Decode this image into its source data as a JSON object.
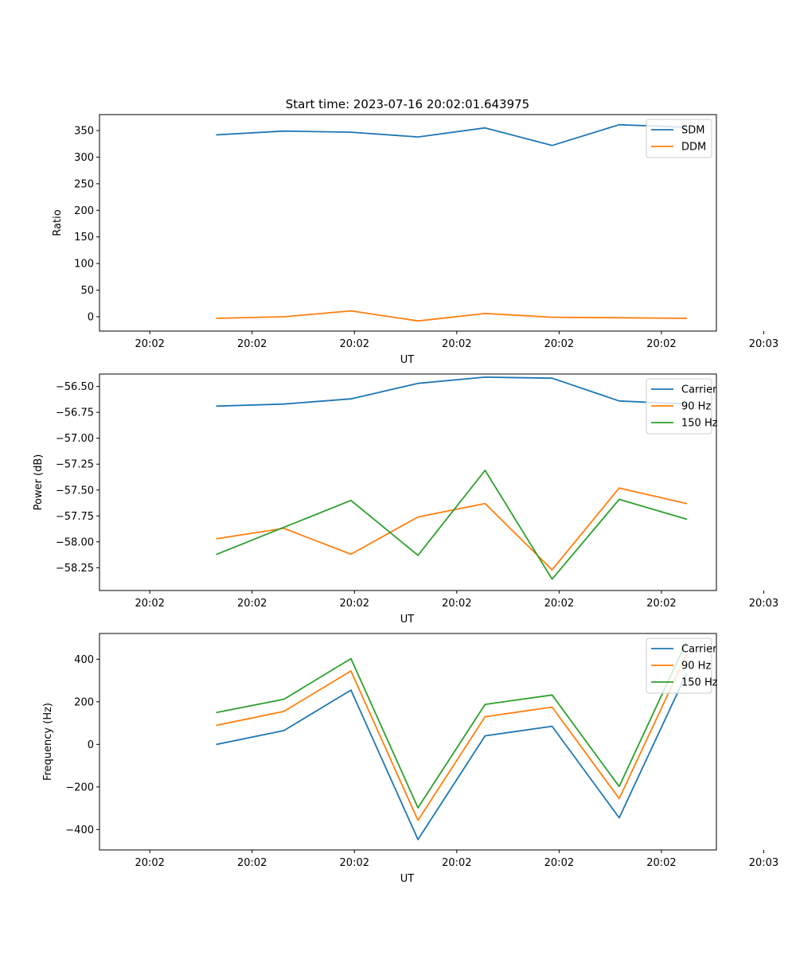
{
  "figure": {
    "title": "Start time: 2023-07-16 20:02:01.643975"
  },
  "colors": {
    "blue": "#1f77b4",
    "orange": "#ff7f0e",
    "green": "#2ca02c"
  },
  "chart_data": [
    {
      "type": "line",
      "title": "Start time: 2023-07-16 20:02:01.643975",
      "xlabel": "UT",
      "ylabel": "Ratio",
      "x": [
        1,
        2,
        3,
        4,
        5,
        6,
        7,
        8
      ],
      "xlim": [
        -0.75,
        8.45
      ],
      "x_ticks": [
        0,
        1.526,
        3.052,
        4.578,
        6.104,
        7.63,
        9.156
      ],
      "x_tick_labels": [
        "20:02",
        "20:02",
        "20:02",
        "20:02",
        "20:02",
        "20:02",
        "20:03"
      ],
      "ylim": [
        -27,
        380
      ],
      "y_ticks": [
        0,
        50,
        100,
        150,
        200,
        250,
        300,
        350
      ],
      "y_tick_labels": [
        "0",
        "50",
        "100",
        "150",
        "200",
        "250",
        "300",
        "350"
      ],
      "legend": "top-right",
      "series": [
        {
          "name": "SDM",
          "color_key": "blue",
          "values": [
            342,
            349,
            347,
            338,
            355,
            322,
            361,
            356
          ]
        },
        {
          "name": "DDM",
          "color_key": "orange",
          "values": [
            -3,
            0,
            11,
            -8,
            6,
            -1,
            -2,
            -3
          ]
        }
      ]
    },
    {
      "type": "line",
      "title": "",
      "xlabel": "UT",
      "ylabel": "Power (dB)",
      "x": [
        1,
        2,
        3,
        4,
        5,
        6,
        7,
        8
      ],
      "xlim": [
        -0.75,
        8.45
      ],
      "x_ticks": [
        0,
        1.526,
        3.052,
        4.578,
        6.104,
        7.63,
        9.156
      ],
      "x_tick_labels": [
        "20:02",
        "20:02",
        "20:02",
        "20:02",
        "20:02",
        "20:02",
        "20:03"
      ],
      "ylim": [
        -58.47,
        -56.38
      ],
      "y_ticks": [
        -56.5,
        -56.75,
        -57.0,
        -57.25,
        -57.5,
        -57.75,
        -58.0,
        -58.25
      ],
      "y_tick_labels": [
        "−56.50",
        "−56.75",
        "−57.00",
        "−57.25",
        "−57.50",
        "−57.75",
        "−58.00",
        "−58.25"
      ],
      "legend": "top-right",
      "series": [
        {
          "name": "Carrier",
          "color_key": "blue",
          "values": [
            -56.69,
            -56.67,
            -56.62,
            -56.47,
            -56.41,
            -56.42,
            -56.64,
            -56.67
          ]
        },
        {
          "name": "90 Hz",
          "color_key": "orange",
          "values": [
            -57.97,
            -57.87,
            -58.12,
            -57.76,
            -57.63,
            -58.27,
            -57.48,
            -57.63
          ]
        },
        {
          "name": "150 Hz",
          "color_key": "green",
          "values": [
            -58.12,
            -57.86,
            -57.6,
            -58.13,
            -57.31,
            -58.36,
            -57.59,
            -57.78
          ]
        }
      ]
    },
    {
      "type": "line",
      "title": "",
      "xlabel": "UT",
      "ylabel": "Frequency (Hz)",
      "x": [
        1,
        2,
        3,
        4,
        5,
        6,
        7,
        8
      ],
      "xlim": [
        -0.75,
        8.45
      ],
      "x_ticks": [
        0,
        1.526,
        3.052,
        4.578,
        6.104,
        7.63,
        9.156
      ],
      "x_tick_labels": [
        "20:02",
        "20:02",
        "20:02",
        "20:02",
        "20:02",
        "20:02",
        "20:03"
      ],
      "ylim": [
        -496,
        521
      ],
      "y_ticks": [
        -400,
        -200,
        0,
        200,
        400
      ],
      "y_tick_labels": [
        "−400",
        "−200",
        "0",
        "200",
        "400"
      ],
      "legend": "top-right",
      "series": [
        {
          "name": "Carrier",
          "color_key": "blue",
          "values": [
            0,
            65,
            255,
            -447,
            40,
            85,
            -345,
            330
          ]
        },
        {
          "name": "90 Hz",
          "color_key": "orange",
          "values": [
            90,
            155,
            345,
            -357,
            130,
            175,
            -255,
            420
          ]
        },
        {
          "name": "150 Hz",
          "color_key": "green",
          "values": [
            150,
            212,
            403,
            -298,
            188,
            232,
            -198,
            480
          ]
        }
      ]
    }
  ]
}
